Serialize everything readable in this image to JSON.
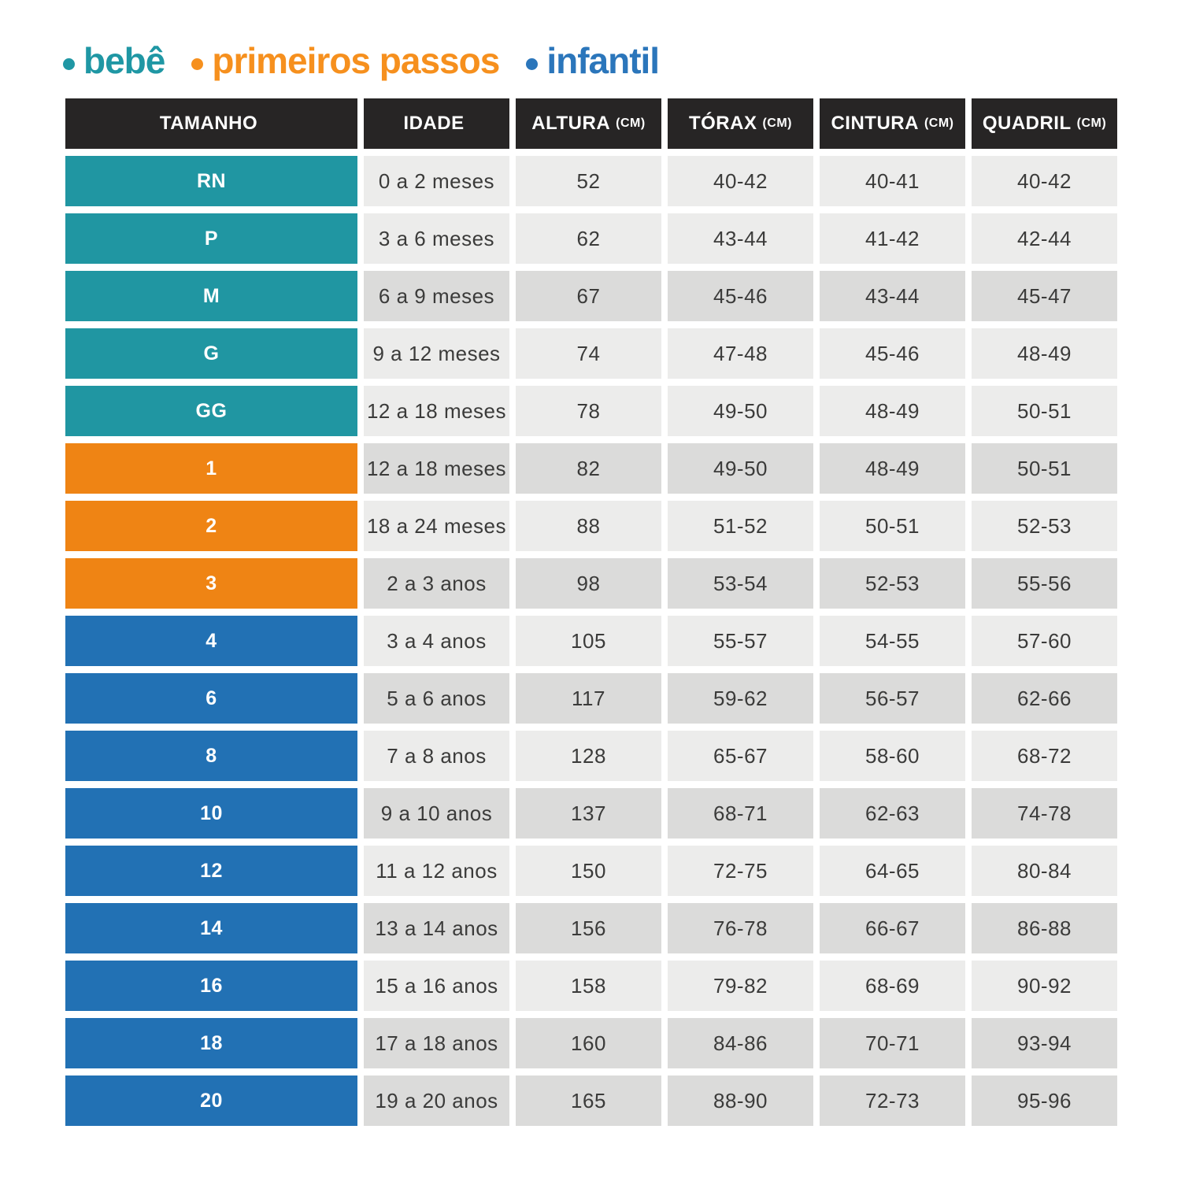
{
  "legend": {
    "items": [
      {
        "id": "bebe",
        "label": "bebê",
        "color": "#1F97A4"
      },
      {
        "id": "primeiros-passos",
        "label": "primeiros passos",
        "color": "#F6901E"
      },
      {
        "id": "infantil",
        "label": "infantil",
        "color": "#2B76BB"
      }
    ]
  },
  "table": {
    "headers": [
      {
        "label": "TAMANHO",
        "unit": ""
      },
      {
        "label": "IDADE",
        "unit": ""
      },
      {
        "label": "ALTURA",
        "unit": "(CM)"
      },
      {
        "label": "TÓRAX",
        "unit": "(CM)"
      },
      {
        "label": "CINTURA",
        "unit": "(CM)"
      },
      {
        "label": "QUADRIL",
        "unit": "(CM)"
      }
    ],
    "rows": [
      {
        "size": "RN",
        "group": "bebe",
        "shade": "light",
        "idade": "0 a 2 meses",
        "altura": "52",
        "torax": "40-42",
        "cintura": "40-41",
        "quadril": "40-42"
      },
      {
        "size": "P",
        "group": "bebe",
        "shade": "light",
        "idade": "3 a 6 meses",
        "altura": "62",
        "torax": "43-44",
        "cintura": "41-42",
        "quadril": "42-44"
      },
      {
        "size": "M",
        "group": "bebe",
        "shade": "dark",
        "idade": "6 a 9 meses",
        "altura": "67",
        "torax": "45-46",
        "cintura": "43-44",
        "quadril": "45-47"
      },
      {
        "size": "G",
        "group": "bebe",
        "shade": "light",
        "idade": "9 a 12 meses",
        "altura": "74",
        "torax": "47-48",
        "cintura": "45-46",
        "quadril": "48-49"
      },
      {
        "size": "GG",
        "group": "bebe",
        "shade": "light",
        "idade": "12 a 18 meses",
        "altura": "78",
        "torax": "49-50",
        "cintura": "48-49",
        "quadril": "50-51"
      },
      {
        "size": "1",
        "group": "primeiros",
        "shade": "dark",
        "idade": "12 a 18 meses",
        "altura": "82",
        "torax": "49-50",
        "cintura": "48-49",
        "quadril": "50-51"
      },
      {
        "size": "2",
        "group": "primeiros",
        "shade": "light",
        "idade": "18 a 24 meses",
        "altura": "88",
        "torax": "51-52",
        "cintura": "50-51",
        "quadril": "52-53"
      },
      {
        "size": "3",
        "group": "primeiros",
        "shade": "dark",
        "idade": "2 a 3 anos",
        "altura": "98",
        "torax": "53-54",
        "cintura": "52-53",
        "quadril": "55-56"
      },
      {
        "size": "4",
        "group": "infantil",
        "shade": "light",
        "idade": "3 a 4 anos",
        "altura": "105",
        "torax": "55-57",
        "cintura": "54-55",
        "quadril": "57-60"
      },
      {
        "size": "6",
        "group": "infantil",
        "shade": "dark",
        "idade": "5 a 6 anos",
        "altura": "117",
        "torax": "59-62",
        "cintura": "56-57",
        "quadril": "62-66"
      },
      {
        "size": "8",
        "group": "infantil",
        "shade": "light",
        "idade": "7 a 8 anos",
        "altura": "128",
        "torax": "65-67",
        "cintura": "58-60",
        "quadril": "68-72"
      },
      {
        "size": "10",
        "group": "infantil",
        "shade": "dark",
        "idade": "9 a 10 anos",
        "altura": "137",
        "torax": "68-71",
        "cintura": "62-63",
        "quadril": "74-78"
      },
      {
        "size": "12",
        "group": "infantil",
        "shade": "light",
        "idade": "11 a 12 anos",
        "altura": "150",
        "torax": "72-75",
        "cintura": "64-65",
        "quadril": "80-84"
      },
      {
        "size": "14",
        "group": "infantil",
        "shade": "dark",
        "idade": "13 a 14 anos",
        "altura": "156",
        "torax": "76-78",
        "cintura": "66-67",
        "quadril": "86-88"
      },
      {
        "size": "16",
        "group": "infantil",
        "shade": "light",
        "idade": "15 a 16 anos",
        "altura": "158",
        "torax": "79-82",
        "cintura": "68-69",
        "quadril": "90-92"
      },
      {
        "size": "18",
        "group": "infantil",
        "shade": "dark",
        "idade": "17 a 18 anos",
        "altura": "160",
        "torax": "84-86",
        "cintura": "70-71",
        "quadril": "93-94"
      },
      {
        "size": "20",
        "group": "infantil",
        "shade": "dark",
        "idade": "19 a 20 anos",
        "altura": "165",
        "torax": "88-90",
        "cintura": "72-73",
        "quadril": "95-96"
      }
    ]
  },
  "colors": {
    "header_bg": "#272525",
    "row_light": "#ECECEB",
    "row_dark": "#DBDBDA",
    "cell_text": "#3B3B3A",
    "row_bebe": "#2096A2",
    "row_primeiros_passos": "#EF8414",
    "row_infantil": "#2271B4",
    "legend_bebe": "#1F97A4",
    "legend_primeiros_passos": "#F6901E",
    "legend_infantil": "#2B76BB"
  },
  "chart_data": {
    "type": "table",
    "columns": [
      "TAMANHO",
      "IDADE",
      "ALTURA (CM)",
      "TÓRAX (CM)",
      "CINTURA (CM)",
      "QUADRIL (CM)"
    ],
    "groups": [
      {
        "name": "bebê",
        "sizes": [
          "RN",
          "P",
          "M",
          "G",
          "GG"
        ]
      },
      {
        "name": "primeiros passos",
        "sizes": [
          "1",
          "2",
          "3"
        ]
      },
      {
        "name": "infantil",
        "sizes": [
          "4",
          "6",
          "8",
          "10",
          "12",
          "14",
          "16",
          "18",
          "20"
        ]
      }
    ],
    "rows": [
      [
        "RN",
        "0 a 2 meses",
        "52",
        "40-42",
        "40-41",
        "40-42"
      ],
      [
        "P",
        "3 a 6 meses",
        "62",
        "43-44",
        "41-42",
        "42-44"
      ],
      [
        "M",
        "6 a 9 meses",
        "67",
        "45-46",
        "43-44",
        "45-47"
      ],
      [
        "G",
        "9 a 12 meses",
        "74",
        "47-48",
        "45-46",
        "48-49"
      ],
      [
        "GG",
        "12 a 18 meses",
        "78",
        "49-50",
        "48-49",
        "50-51"
      ],
      [
        "1",
        "12 a 18 meses",
        "82",
        "49-50",
        "48-49",
        "50-51"
      ],
      [
        "2",
        "18 a 24 meses",
        "88",
        "51-52",
        "50-51",
        "52-53"
      ],
      [
        "3",
        "2 a 3 anos",
        "98",
        "53-54",
        "52-53",
        "55-56"
      ],
      [
        "4",
        "3 a 4 anos",
        "105",
        "55-57",
        "54-55",
        "57-60"
      ],
      [
        "6",
        "5 a 6 anos",
        "117",
        "59-62",
        "56-57",
        "62-66"
      ],
      [
        "8",
        "7 a 8 anos",
        "128",
        "65-67",
        "58-60",
        "68-72"
      ],
      [
        "10",
        "9 a 10 anos",
        "137",
        "68-71",
        "62-63",
        "74-78"
      ],
      [
        "12",
        "11 a 12 anos",
        "150",
        "72-75",
        "64-65",
        "80-84"
      ],
      [
        "14",
        "13 a 14 anos",
        "156",
        "76-78",
        "66-67",
        "86-88"
      ],
      [
        "16",
        "15 a 16 anos",
        "158",
        "79-82",
        "68-69",
        "90-92"
      ],
      [
        "18",
        "17 a 18 anos",
        "160",
        "84-86",
        "70-71",
        "93-94"
      ],
      [
        "20",
        "19 a 20 anos",
        "165",
        "88-90",
        "72-73",
        "95-96"
      ]
    ]
  }
}
